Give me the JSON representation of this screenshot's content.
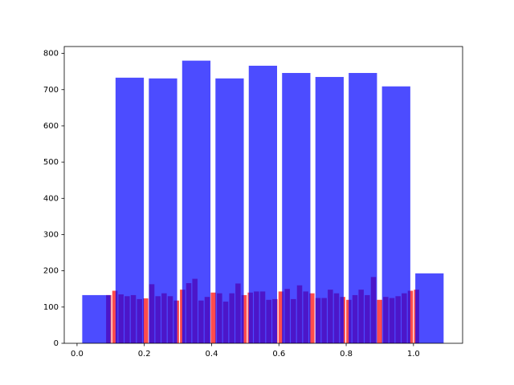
{
  "chart_data": {
    "type": "histogram",
    "series": [
      {
        "color": "#ff0000",
        "bins": [
          0.085,
          0.1033,
          0.1216,
          0.1399,
          0.1582,
          0.1765,
          0.1948,
          0.2131,
          0.2314,
          0.2497,
          0.268,
          0.2863,
          0.3046,
          0.3229,
          0.3412,
          0.3595,
          0.3778,
          0.3961,
          0.4144,
          0.4327,
          0.451,
          0.4693,
          0.4876,
          0.5059,
          0.5242,
          0.5425,
          0.5608,
          0.5791,
          0.5974,
          0.6157,
          0.634,
          0.6523,
          0.6706,
          0.6889,
          0.7072,
          0.7255,
          0.7438,
          0.7621,
          0.7804,
          0.7987,
          0.817,
          0.8353,
          0.8536,
          0.8719,
          0.8902,
          0.9085,
          0.9268,
          0.9451,
          0.9634,
          0.9817,
          1.0,
          1.0183
        ],
        "values": [
          133,
          145,
          135,
          130,
          133,
          122,
          124,
          163,
          130,
          138,
          130,
          118,
          148,
          166,
          178,
          118,
          128,
          140,
          138,
          115,
          138,
          165,
          133,
          140,
          143,
          143,
          120,
          122,
          143,
          150,
          122,
          160,
          143,
          138,
          125,
          125,
          148,
          138,
          128,
          120,
          133,
          148,
          133,
          183,
          120,
          128,
          125,
          130,
          138,
          145,
          148
        ]
      },
      {
        "color": "#0000ff",
        "bins": [
          0.008,
          0.107,
          0.206,
          0.305,
          0.404,
          0.503,
          0.602,
          0.701,
          0.8,
          0.899,
          0.998,
          1.097
        ],
        "values": [
          133,
          733,
          731,
          780,
          731,
          766,
          746,
          735,
          746,
          709,
          193
        ]
      }
    ],
    "xlim": [
      -0.038,
      1.146
    ],
    "xticks": [
      {
        "value": 0,
        "label": "0.0"
      },
      0.2,
      0.4,
      0.6,
      0.8,
      {
        "value": 1,
        "label": "1.0"
      }
    ],
    "ylim": [
      0,
      819
    ],
    "yticks": [
      0,
      100,
      200,
      300,
      400,
      500,
      600,
      700,
      800
    ]
  }
}
